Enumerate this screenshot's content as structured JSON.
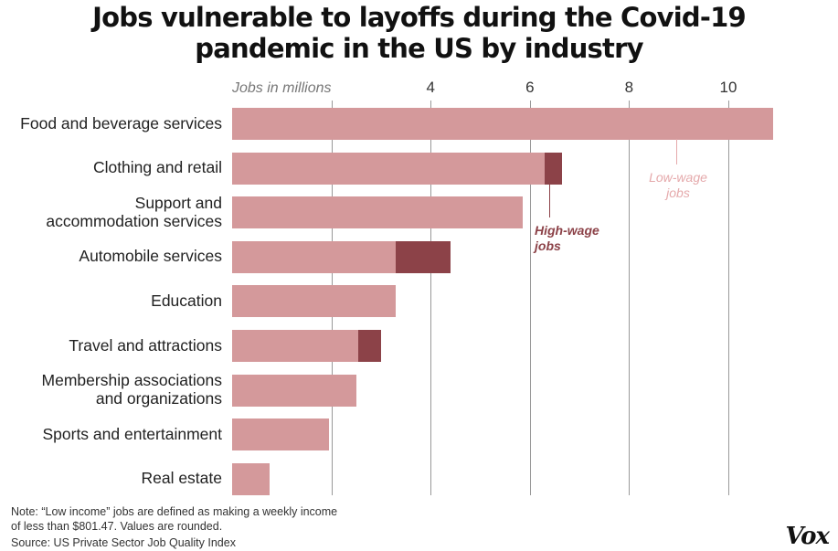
{
  "chart_data": {
    "type": "bar",
    "orientation": "horizontal",
    "stacked": true,
    "title": "Jobs vulnerable to layoffs during the Covid-19 pandemic in the US by industry",
    "title_lines": [
      "Jobs vulnerable to layoffs during the Covid-19",
      "pandemic in the US by industry"
    ],
    "unit_label": "Jobs in millions",
    "xlim": [
      0,
      11
    ],
    "ticks": [
      4,
      6,
      8,
      10
    ],
    "gridlines": [
      2,
      4,
      6,
      8,
      10
    ],
    "categories": [
      [
        "Food and beverage services"
      ],
      [
        "Clothing and retail"
      ],
      [
        "Support and",
        "accommodation services"
      ],
      [
        "Automobile services"
      ],
      [
        "Education"
      ],
      [
        "Travel and attractions"
      ],
      [
        "Membership associations",
        "and organizations"
      ],
      [
        "Sports and entertainment"
      ],
      [
        "Real estate"
      ]
    ],
    "series": [
      {
        "key": "low",
        "values": [
          10.9,
          6.3,
          5.85,
          3.3,
          3.3,
          2.55,
          2.5,
          1.95,
          0.75
        ]
      },
      {
        "key": "high",
        "values": [
          0,
          0.35,
          0,
          1.1,
          0,
          0.45,
          0,
          0,
          0
        ]
      }
    ],
    "annotations": {
      "low": [
        "Low-wage",
        "jobs"
      ],
      "high": [
        "High-wage",
        "jobs"
      ]
    }
  },
  "colors": {
    "low_wage": "#d4999b",
    "high_wage": "#8c4248",
    "low_annotation": "#e5a9ab"
  },
  "footer": {
    "note_line1": "Note: “Low income” jobs are defined as making a weekly income",
    "note_line2": "of less than $801.47. Values are rounded.",
    "source": "Source: US Private Sector Job Quality Index"
  },
  "brand": {
    "logo_text": "Vox"
  }
}
